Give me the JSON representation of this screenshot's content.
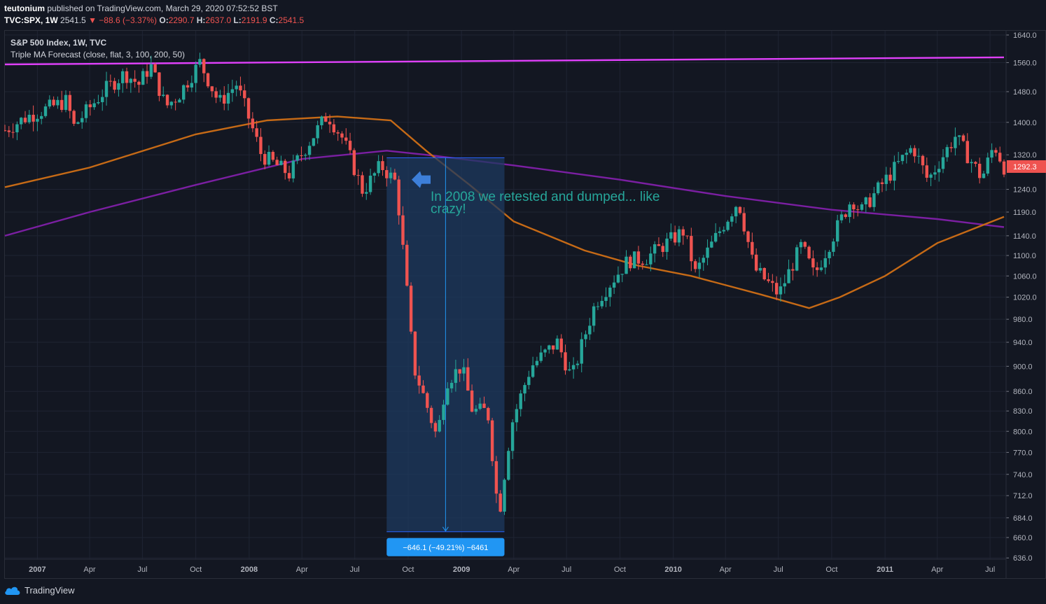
{
  "header": {
    "author": "teutonium",
    "published_text": "published on TradingView.com, March 29, 2020 07:52:52 BST",
    "symbol": "TVC:SPX, 1W",
    "last": "2541.5",
    "change": "▼ −88.6 (−3.37%)",
    "o_label": "O:",
    "o_value": "2290.7",
    "h_label": "H:",
    "h_value": "2637.0",
    "l_label": "L:",
    "l_value": "2191.9",
    "c_label": "C:",
    "c_value": "2541.5"
  },
  "legend": {
    "title": "S&P 500 Index, 1W, TVC",
    "indicator": "Triple MA Forecast (close, flat, 3, 100, 200, 50)"
  },
  "annotation": {
    "text_line1": "In 2008 we retested and dumped... like",
    "text_line2": "crazy!",
    "measure_label": "−646.1 (−49.21%) −6461"
  },
  "footer": {
    "brand": "TradingView"
  },
  "colors": {
    "background": "#131722",
    "up": "#26a69a",
    "down": "#ef5350",
    "ma_magenta": "#e040fb",
    "ma_purple": "#7b1fa2",
    "ma_orange": "#c66a16",
    "measure_box": "#1e3a5f",
    "measure_label": "#2196f3",
    "annotation_text": "#26a69a"
  },
  "chart_data": {
    "type": "candlestick",
    "title": "S&P 500 Index, 1W, TVC",
    "y_scale": "log",
    "ylim": [
      636,
      1650
    ],
    "y_ticks": [
      1640.0,
      1560.0,
      1480.0,
      1400.0,
      1320.0,
      1240.0,
      1190.0,
      1140.0,
      1100.0,
      1060.0,
      1020.0,
      980.0,
      940.0,
      900.0,
      860.0,
      830.0,
      800.0,
      770.0,
      740.0,
      712.0,
      684.0,
      660.0,
      636.0
    ],
    "last_price_label": "1292.3",
    "x_range": [
      "2006-11-06",
      "2011-07-25"
    ],
    "x_ticks": [
      {
        "date": "2007-01-01",
        "label": "2007",
        "bold": true
      },
      {
        "date": "2007-04-01",
        "label": "Apr"
      },
      {
        "date": "2007-07-01",
        "label": "Jul"
      },
      {
        "date": "2007-10-01",
        "label": "Oct"
      },
      {
        "date": "2008-01-01",
        "label": "2008",
        "bold": true
      },
      {
        "date": "2008-04-01",
        "label": "Apr"
      },
      {
        "date": "2008-07-01",
        "label": "Jul"
      },
      {
        "date": "2008-10-01",
        "label": "Oct"
      },
      {
        "date": "2009-01-01",
        "label": "2009",
        "bold": true
      },
      {
        "date": "2009-04-01",
        "label": "Apr"
      },
      {
        "date": "2009-07-01",
        "label": "Jul"
      },
      {
        "date": "2009-10-01",
        "label": "Oct"
      },
      {
        "date": "2010-01-01",
        "label": "2010",
        "bold": true
      },
      {
        "date": "2010-04-01",
        "label": "Apr"
      },
      {
        "date": "2010-07-01",
        "label": "Jul"
      },
      {
        "date": "2010-10-01",
        "label": "Oct"
      },
      {
        "date": "2011-01-01",
        "label": "2011",
        "bold": true
      },
      {
        "date": "2011-04-01",
        "label": "Apr"
      },
      {
        "date": "2011-07-01",
        "label": "Jul"
      }
    ],
    "close_path": [
      [
        "2006-11-06",
        1380
      ],
      [
        "2006-12-15",
        1415
      ],
      [
        "2007-02-20",
        1455
      ],
      [
        "2007-03-05",
        1390
      ],
      [
        "2007-05-01",
        1490
      ],
      [
        "2007-06-01",
        1530
      ],
      [
        "2007-06-25",
        1500
      ],
      [
        "2007-07-15",
        1552
      ],
      [
        "2007-08-10",
        1440
      ],
      [
        "2007-09-01",
        1470
      ],
      [
        "2007-10-08",
        1560
      ],
      [
        "2007-11-10",
        1450
      ],
      [
        "2007-12-10",
        1500
      ],
      [
        "2008-01-22",
        1320
      ],
      [
        "2008-03-10",
        1275
      ],
      [
        "2008-05-15",
        1420
      ],
      [
        "2008-06-10",
        1360
      ],
      [
        "2008-07-15",
        1235
      ],
      [
        "2008-08-15",
        1295
      ],
      [
        "2008-09-10",
        1255
      ],
      [
        "2008-10-10",
        900
      ],
      [
        "2008-11-20",
        790
      ],
      [
        "2008-12-05",
        875
      ],
      [
        "2009-01-01",
        900
      ],
      [
        "2009-01-20",
        830
      ],
      [
        "2009-02-15",
        830
      ],
      [
        "2009-03-06",
        683
      ],
      [
        "2009-03-28",
        810
      ],
      [
        "2009-05-01",
        900
      ],
      [
        "2009-06-15",
        940
      ],
      [
        "2009-07-10",
        880
      ],
      [
        "2009-08-20",
        1010
      ],
      [
        "2009-10-15",
        1090
      ],
      [
        "2009-11-15",
        1095
      ],
      [
        "2010-01-19",
        1150
      ],
      [
        "2010-02-08",
        1065
      ],
      [
        "2010-04-23",
        1215
      ],
      [
        "2010-05-20",
        1075
      ],
      [
        "2010-07-02",
        1025
      ],
      [
        "2010-08-10",
        1120
      ],
      [
        "2010-09-01",
        1060
      ],
      [
        "2010-11-05",
        1220
      ],
      [
        "2010-11-20",
        1190
      ],
      [
        "2011-02-18",
        1340
      ],
      [
        "2011-03-16",
        1260
      ],
      [
        "2011-05-02",
        1365
      ],
      [
        "2011-06-17",
        1265
      ],
      [
        "2011-07-08",
        1345
      ],
      [
        "2011-07-25",
        1292
      ]
    ],
    "series": [
      {
        "name": "MA 50",
        "color": "#e040fb",
        "points": [
          [
            "2006-11-06",
            1555
          ],
          [
            "2011-07-25",
            1575
          ]
        ]
      },
      {
        "name": "MA 200",
        "color": "#7b1fa2",
        "points": [
          [
            "2006-11-06",
            1140
          ],
          [
            "2007-04-01",
            1190
          ],
          [
            "2007-10-01",
            1250
          ],
          [
            "2008-04-01",
            1310
          ],
          [
            "2008-08-25",
            1330
          ],
          [
            "2008-11-01",
            1320
          ],
          [
            "2009-04-01",
            1295
          ],
          [
            "2009-10-01",
            1262
          ],
          [
            "2010-04-01",
            1225
          ],
          [
            "2010-10-01",
            1195
          ],
          [
            "2011-04-01",
            1175
          ],
          [
            "2011-07-25",
            1158
          ]
        ]
      },
      {
        "name": "MA 100",
        "color": "#c66a16",
        "points": [
          [
            "2006-11-06",
            1245
          ],
          [
            "2007-04-01",
            1290
          ],
          [
            "2007-10-01",
            1370
          ],
          [
            "2008-02-01",
            1405
          ],
          [
            "2008-06-01",
            1415
          ],
          [
            "2008-09-01",
            1405
          ],
          [
            "2008-11-01",
            1330
          ],
          [
            "2009-01-15",
            1250
          ],
          [
            "2009-04-01",
            1170
          ],
          [
            "2009-08-01",
            1110
          ],
          [
            "2009-11-01",
            1080
          ],
          [
            "2010-02-01",
            1060
          ],
          [
            "2010-06-01",
            1025
          ],
          [
            "2010-08-23",
            1000
          ],
          [
            "2010-10-15",
            1020
          ],
          [
            "2011-01-01",
            1060
          ],
          [
            "2011-04-01",
            1125
          ],
          [
            "2011-07-25",
            1180
          ]
        ]
      }
    ],
    "measure": {
      "start_date": "2008-08-25",
      "end_date": "2009-03-16",
      "high": 1313,
      "low": 666.9,
      "change": -646.1,
      "change_pct": -49.21,
      "ticks": -6461
    }
  }
}
